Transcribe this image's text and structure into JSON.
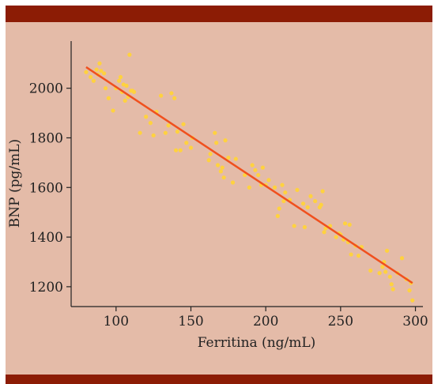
{
  "colors": {
    "background": "#e4bba8",
    "band": "#8c1c05",
    "points": "#ffd23f",
    "trendline": "#f0501e",
    "axis": "#222222"
  },
  "chart_data": {
    "type": "scatter",
    "title": "",
    "xlabel": "Ferritina (ng/mL)",
    "ylabel": "BNP (pg/mL)",
    "xlim": [
      70,
      305
    ],
    "ylim": [
      1120,
      2190
    ],
    "xticks": [
      100,
      150,
      200,
      250,
      300
    ],
    "yticks": [
      1200,
      1400,
      1600,
      1800,
      2000
    ],
    "grid": false,
    "legend": "none",
    "trendline": {
      "x": [
        80,
        298
      ],
      "y": [
        2085,
        1215
      ]
    },
    "points": [
      [
        80,
        2065
      ],
      [
        83,
        2045
      ],
      [
        85,
        2030
      ],
      [
        87,
        2075
      ],
      [
        88,
        2055
      ],
      [
        89,
        2100
      ],
      [
        90,
        2070
      ],
      [
        92,
        2060
      ],
      [
        93,
        2000
      ],
      [
        95,
        1960
      ],
      [
        98,
        1910
      ],
      [
        100,
        2000
      ],
      [
        102,
        2030
      ],
      [
        103,
        2045
      ],
      [
        104,
        1985
      ],
      [
        105,
        2015
      ],
      [
        106,
        1950
      ],
      [
        107,
        2010
      ],
      [
        108,
        1965
      ],
      [
        109,
        2135
      ],
      [
        110,
        1990
      ],
      [
        111,
        1990
      ],
      [
        112,
        1985
      ],
      [
        116,
        1820
      ],
      [
        120,
        1885
      ],
      [
        123,
        1860
      ],
      [
        125,
        1810
      ],
      [
        127,
        1905
      ],
      [
        130,
        1970
      ],
      [
        133,
        1820
      ],
      [
        135,
        1850
      ],
      [
        137,
        1980
      ],
      [
        139,
        1960
      ],
      [
        140,
        1750
      ],
      [
        141,
        1825
      ],
      [
        143,
        1750
      ],
      [
        145,
        1855
      ],
      [
        147,
        1780
      ],
      [
        150,
        1760
      ],
      [
        151,
        1800
      ],
      [
        162,
        1710
      ],
      [
        163,
        1735
      ],
      [
        166,
        1820
      ],
      [
        167,
        1780
      ],
      [
        168,
        1690
      ],
      [
        170,
        1665
      ],
      [
        171,
        1680
      ],
      [
        172,
        1640
      ],
      [
        173,
        1790
      ],
      [
        175,
        1720
      ],
      [
        178,
        1620
      ],
      [
        180,
        1715
      ],
      [
        186,
        1650
      ],
      [
        189,
        1600
      ],
      [
        191,
        1690
      ],
      [
        193,
        1670
      ],
      [
        195,
        1650
      ],
      [
        197,
        1610
      ],
      [
        198,
        1680
      ],
      [
        200,
        1610
      ],
      [
        202,
        1630
      ],
      [
        206,
        1600
      ],
      [
        208,
        1485
      ],
      [
        209,
        1515
      ],
      [
        211,
        1610
      ],
      [
        212,
        1545
      ],
      [
        213,
        1580
      ],
      [
        216,
        1550
      ],
      [
        219,
        1445
      ],
      [
        221,
        1590
      ],
      [
        225,
        1535
      ],
      [
        226,
        1440
      ],
      [
        228,
        1520
      ],
      [
        230,
        1565
      ],
      [
        233,
        1545
      ],
      [
        236,
        1520
      ],
      [
        237,
        1530
      ],
      [
        238,
        1585
      ],
      [
        239,
        1420
      ],
      [
        240,
        1435
      ],
      [
        243,
        1445
      ],
      [
        247,
        1400
      ],
      [
        249,
        1415
      ],
      [
        250,
        1410
      ],
      [
        252,
        1390
      ],
      [
        253,
        1455
      ],
      [
        255,
        1380
      ],
      [
        256,
        1450
      ],
      [
        257,
        1330
      ],
      [
        260,
        1365
      ],
      [
        262,
        1325
      ],
      [
        264,
        1360
      ],
      [
        270,
        1265
      ],
      [
        276,
        1255
      ],
      [
        278,
        1280
      ],
      [
        279,
        1300
      ],
      [
        280,
        1260
      ],
      [
        281,
        1345
      ],
      [
        283,
        1240
      ],
      [
        284,
        1210
      ],
      [
        285,
        1190
      ],
      [
        288,
        1255
      ],
      [
        291,
        1315
      ],
      [
        294,
        1230
      ],
      [
        296,
        1185
      ],
      [
        297,
        1215
      ],
      [
        298,
        1145
      ]
    ]
  }
}
